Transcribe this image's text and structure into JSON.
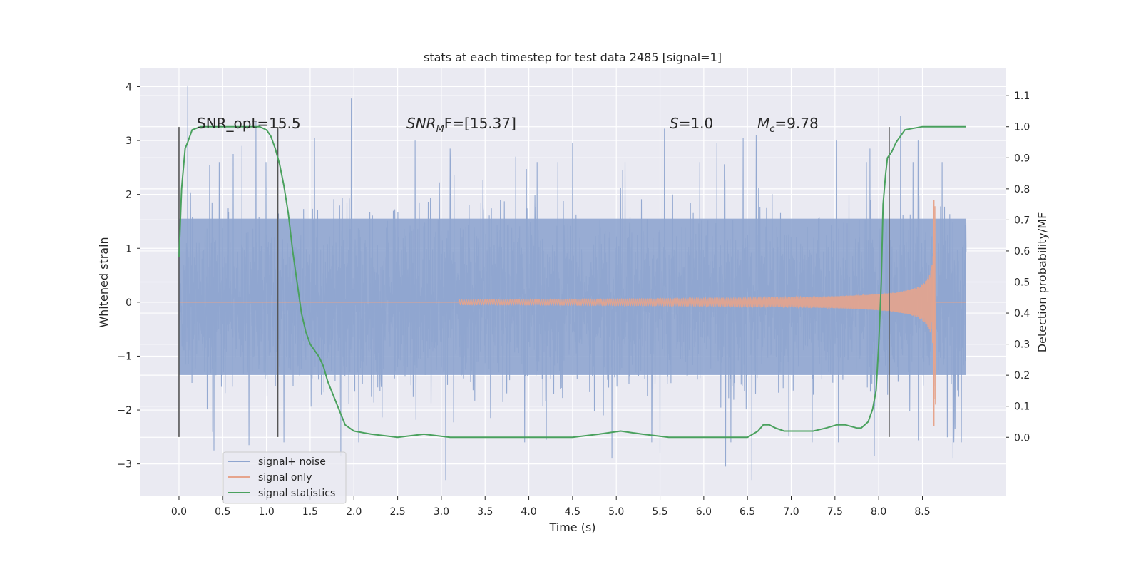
{
  "chart_data": {
    "type": "line",
    "title": "stats at each timestep for test data 2485 [signal=1]",
    "xlabel": "Time (s)",
    "ylabel": "Whitened strain",
    "y2label": "Detection probability/MF",
    "xlim": [
      -0.44,
      9.45
    ],
    "ylim": [
      -3.6,
      4.35
    ],
    "y2lim": [
      -0.19,
      1.19
    ],
    "xticks": [
      0.0,
      0.5,
      1.0,
      1.5,
      2.0,
      2.5,
      3.0,
      3.5,
      4.0,
      4.5,
      5.0,
      5.5,
      6.0,
      6.5,
      7.0,
      7.5,
      8.0,
      8.5
    ],
    "xtick_labels": [
      "0.0",
      "0.5",
      "1.0",
      "1.5",
      "2.0",
      "2.5",
      "3.0",
      "3.5",
      "4.0",
      "4.5",
      "5.0",
      "5.5",
      "6.0",
      "6.5",
      "7.0",
      "7.5",
      "8.0",
      "8.5"
    ],
    "yticks": [
      -3,
      -2,
      -1,
      0,
      1,
      2,
      3,
      4
    ],
    "ytick_labels": [
      "−3",
      "−2",
      "−1",
      "0",
      "1",
      "2",
      "3",
      "4"
    ],
    "y2ticks": [
      0.0,
      0.1,
      0.2,
      0.3,
      0.4,
      0.5,
      0.6,
      0.7,
      0.8,
      0.9,
      1.0,
      1.1
    ],
    "y2tick_labels": [
      "0.0",
      "0.1",
      "0.2",
      "0.3",
      "0.4",
      "0.5",
      "0.6",
      "0.7",
      "0.8",
      "0.9",
      "1.0",
      "1.1"
    ],
    "grid": true,
    "legend_position": "bottom-left",
    "series": [
      {
        "name": "signal+ noise",
        "color": "#8fa5cf",
        "axis": "left",
        "t_range": [
          0.0,
          9.0
        ],
        "sample_rate": 400,
        "typical_amplitude": [
          -1.35,
          1.55
        ],
        "spikes": [
          [
            0.1,
            4.02
          ],
          [
            0.35,
            2.55
          ],
          [
            0.62,
            2.75
          ],
          [
            0.72,
            2.9
          ],
          [
            0.88,
            3.35
          ],
          [
            1.55,
            3.05
          ],
          [
            1.97,
            3.78
          ],
          [
            2.7,
            3.0
          ],
          [
            3.1,
            2.85
          ],
          [
            3.85,
            2.7
          ],
          [
            4.5,
            2.95
          ],
          [
            5.1,
            2.6
          ],
          [
            5.55,
            3.22
          ],
          [
            6.15,
            2.95
          ],
          [
            6.45,
            3.05
          ],
          [
            6.6,
            3.1
          ],
          [
            7.52,
            3.0
          ],
          [
            7.9,
            2.85
          ],
          [
            8.25,
            3.45
          ],
          [
            8.45,
            3.0
          ],
          [
            0.4,
            -2.75
          ],
          [
            0.8,
            -2.65
          ],
          [
            1.2,
            -2.6
          ],
          [
            1.85,
            -2.85
          ],
          [
            3.05,
            -3.3
          ],
          [
            4.2,
            -2.55
          ],
          [
            4.95,
            -2.9
          ],
          [
            5.5,
            -2.8
          ],
          [
            6.25,
            -3.05
          ],
          [
            6.55,
            -3.3
          ],
          [
            7.95,
            -2.85
          ],
          [
            8.85,
            -2.9
          ]
        ]
      },
      {
        "name": "signal only",
        "color": "#e6a48c",
        "axis": "left",
        "chirp_start": 3.2,
        "merger_time": 8.65,
        "peak_amplitude": 1.9,
        "min_amplitude": -2.3
      },
      {
        "name": "signal statistics",
        "color": "#4aa15e",
        "axis": "right",
        "t": [
          0.0,
          0.03,
          0.07,
          0.1,
          0.15,
          0.25,
          0.4,
          0.6,
          0.8,
          0.92,
          1.0,
          1.05,
          1.1,
          1.15,
          1.2,
          1.25,
          1.3,
          1.35,
          1.4,
          1.45,
          1.5,
          1.55,
          1.6,
          1.65,
          1.7,
          1.8,
          1.9,
          2.0,
          2.2,
          2.5,
          2.8,
          3.1,
          3.5,
          4.0,
          4.5,
          4.8,
          5.05,
          5.3,
          5.6,
          5.9,
          6.2,
          6.5,
          6.62,
          6.68,
          6.75,
          6.82,
          6.92,
          7.05,
          7.25,
          7.4,
          7.52,
          7.62,
          7.75,
          7.8,
          7.88,
          7.93,
          7.97,
          8.0,
          8.03,
          8.05,
          8.08,
          8.1,
          8.15,
          8.2,
          8.3,
          8.5,
          8.7,
          9.0
        ],
        "values": [
          0.58,
          0.8,
          0.93,
          0.95,
          0.99,
          1.0,
          1.0,
          1.0,
          1.0,
          1.0,
          0.99,
          0.97,
          0.93,
          0.88,
          0.81,
          0.72,
          0.6,
          0.5,
          0.4,
          0.34,
          0.3,
          0.28,
          0.26,
          0.23,
          0.18,
          0.11,
          0.04,
          0.02,
          0.01,
          0.0,
          0.01,
          0.0,
          0.0,
          0.0,
          0.0,
          0.01,
          0.02,
          0.01,
          0.0,
          0.0,
          0.0,
          0.0,
          0.02,
          0.04,
          0.04,
          0.03,
          0.02,
          0.02,
          0.02,
          0.03,
          0.04,
          0.04,
          0.03,
          0.03,
          0.05,
          0.09,
          0.15,
          0.3,
          0.5,
          0.75,
          0.85,
          0.9,
          0.92,
          0.95,
          0.99,
          1.0,
          1.0,
          1.0
        ]
      }
    ],
    "vertical_lines": {
      "color": "#555555",
      "positions": [
        0.0,
        1.13,
        8.12
      ],
      "y_range": [
        -2.5,
        3.25
      ]
    },
    "annotations": {
      "snr_opt": "SNR_opt=15.5",
      "snr_mf_sym": "SNR",
      "snr_mf_sub": "M",
      "snr_mf_rest": "F=[15.37]",
      "s_sym": "S",
      "s_rest": "=1.0",
      "mc_sym": "M",
      "mc_sub": "c",
      "mc_rest": "=9.78"
    },
    "colors": {
      "plot_background": "#eaeaf2",
      "grid": "#ffffff"
    }
  }
}
